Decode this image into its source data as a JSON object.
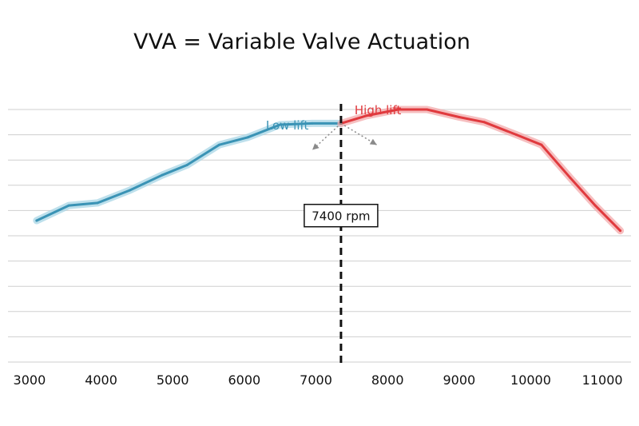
{
  "chart_data": {
    "type": "line",
    "title": "VVA = Variable Valve Actuation",
    "xlabel": "",
    "ylabel": "",
    "xlim": [
      2700,
      11400
    ],
    "ylim": [
      0,
      10
    ],
    "grid": true,
    "x_ticks": [
      3000,
      4000,
      5000,
      6000,
      7000,
      8000,
      9000,
      10000,
      11000
    ],
    "y_gridlines": [
      0,
      1,
      2,
      3,
      4,
      5,
      6,
      7,
      8,
      9,
      10
    ],
    "series": [
      {
        "name": "Low lift",
        "color": "#3a93b5",
        "glow": "#a8d6e6",
        "x": [
          3100,
          3550,
          3950,
          4400,
          4850,
          5200,
          5650,
          6050,
          6500,
          6950,
          7350
        ],
        "y": [
          5.6,
          6.2,
          6.3,
          6.8,
          7.4,
          7.8,
          8.6,
          8.9,
          9.4,
          9.45,
          9.45
        ]
      },
      {
        "name": "High lift",
        "color": "#e03a3e",
        "glow": "#f3a9ab",
        "x": [
          7350,
          7700,
          8150,
          8550,
          9000,
          9350,
          9800,
          10150,
          10550,
          10900,
          11250
        ],
        "y": [
          9.45,
          9.75,
          10.0,
          10.0,
          9.7,
          9.5,
          9.0,
          8.6,
          7.3,
          6.2,
          5.2
        ]
      }
    ],
    "crossover": {
      "x": 7350,
      "label": "7400 rpm",
      "label_y": 5.8,
      "line_color": "#111111"
    },
    "arrows": {
      "color": "#8a8a8a",
      "left_to": [
        6950,
        8.4
      ],
      "right_to": [
        7850,
        8.6
      ]
    }
  }
}
